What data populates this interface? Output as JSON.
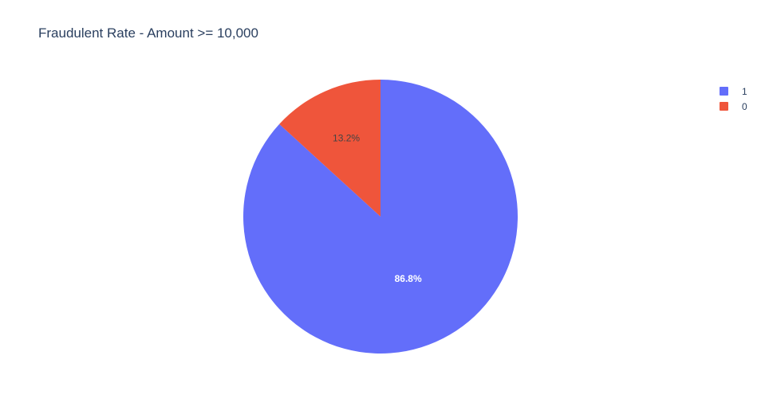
{
  "chart_data": {
    "type": "pie",
    "title": "Fraudulent Rate - Amount >= 10,000",
    "labels": [
      "1",
      "0"
    ],
    "values": [
      86.8,
      13.2
    ],
    "text_labels": [
      "86.8%",
      "13.2%"
    ],
    "colors": [
      "#636efa",
      "#ef553b"
    ],
    "label_colors": [
      "#ffffff",
      "#444444"
    ],
    "legend_placement": "top-right",
    "direction": "clockwise-from-top"
  }
}
